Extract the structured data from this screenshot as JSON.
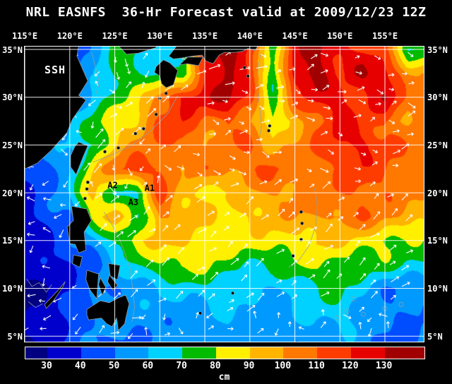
{
  "title": "NRL EASNFS  36-Hr Forecast valid at 2009/12/23 12Z",
  "map": {
    "field_label": "SSH",
    "lon_ticks": [
      "115°E",
      "120°E",
      "125°E",
      "130°E",
      "135°E",
      "140°E",
      "145°E",
      "150°E",
      "155°E"
    ],
    "lat_ticks": [
      "35°N",
      "30°N",
      "25°N",
      "20°N",
      "15°N",
      "10°N",
      "5°N"
    ],
    "annotations": [
      {
        "label": "A2",
        "lon": 124.2,
        "lat": 20.5
      },
      {
        "label": "A1",
        "lon": 128.3,
        "lat": 20.2
      },
      {
        "label": "A3",
        "lon": 126.5,
        "lat": 18.7
      }
    ]
  },
  "colorbar": {
    "units": "cm",
    "ticks": [
      "30",
      "40",
      "50",
      "60",
      "70",
      "80",
      "90",
      "100",
      "110",
      "120",
      "130"
    ],
    "thresholds": [
      30,
      40,
      50,
      60,
      70,
      80,
      90,
      100,
      110,
      120,
      130
    ],
    "colors": [
      "#000080",
      "#0000cc",
      "#004cff",
      "#009aff",
      "#00d2ff",
      "#00bb00",
      "#fff000",
      "#ffb400",
      "#ff7800",
      "#ff3c00",
      "#e60000",
      "#a00000"
    ]
  },
  "chart_data": {
    "type": "heatmap",
    "title": "NRL EASNFS 36-Hr Forecast valid at 2009/12/23 12Z",
    "variable": "Sea Surface Height (SSH)",
    "units": "cm",
    "lon_range": [
      115,
      157.5
    ],
    "lat_range": [
      5,
      35
    ],
    "colorbar_ticks": [
      30,
      40,
      50,
      60,
      70,
      80,
      90,
      100,
      110,
      120,
      130
    ],
    "lon": [
      115,
      117.5,
      120,
      122.5,
      125,
      127.5,
      130,
      132.5,
      135,
      137.5,
      140,
      142.5,
      145,
      147.5,
      150,
      152.5,
      155,
      157.5
    ],
    "lat": [
      35,
      32.5,
      30,
      27.5,
      25,
      22.5,
      20,
      17.5,
      15,
      12.5,
      10,
      7.5,
      5
    ],
    "values": [
      [
        45,
        45,
        40,
        55,
        72,
        72,
        66,
        68,
        115,
        135,
        122,
        72,
        126,
        136,
        124,
        118,
        108,
        70
      ],
      [
        45,
        46,
        44,
        56,
        76,
        76,
        66,
        70,
        118,
        136,
        114,
        72,
        132,
        136,
        114,
        130,
        124,
        100
      ],
      [
        46,
        48,
        52,
        66,
        76,
        82,
        106,
        120,
        126,
        131,
        120,
        78,
        112,
        124,
        122,
        114,
        131,
        106
      ],
      [
        48,
        52,
        62,
        76,
        86,
        92,
        112,
        116,
        106,
        114,
        104,
        76,
        96,
        106,
        126,
        114,
        112,
        104
      ],
      [
        50,
        55,
        62,
        70,
        90,
        100,
        106,
        112,
        100,
        106,
        112,
        96,
        100,
        110,
        120,
        126,
        114,
        108
      ],
      [
        44,
        50,
        60,
        86,
        106,
        116,
        114,
        96,
        112,
        104,
        106,
        110,
        100,
        108,
        112,
        118,
        112,
        104
      ],
      [
        38,
        46,
        56,
        96,
        66,
        70,
        118,
        96,
        88,
        86,
        95,
        100,
        105,
        108,
        110,
        112,
        108,
        100
      ],
      [
        35,
        42,
        50,
        80,
        100,
        70,
        105,
        95,
        88,
        85,
        90,
        95,
        100,
        102,
        105,
        108,
        100,
        95
      ],
      [
        32,
        38,
        45,
        55,
        76,
        88,
        92,
        90,
        85,
        82,
        85,
        88,
        90,
        92,
        90,
        85,
        80,
        78
      ],
      [
        30,
        35,
        42,
        50,
        60,
        70,
        78,
        82,
        80,
        75,
        72,
        75,
        78,
        80,
        75,
        72,
        75,
        72
      ],
      [
        28,
        33,
        42,
        48,
        52,
        55,
        58,
        62,
        68,
        66,
        62,
        58,
        62,
        68,
        70,
        62,
        55,
        52
      ],
      [
        30,
        36,
        42,
        55,
        58,
        52,
        55,
        58,
        60,
        62,
        58,
        54,
        56,
        62,
        66,
        60,
        52,
        50
      ],
      [
        32,
        38,
        44,
        46,
        48,
        50,
        52,
        54,
        56,
        58,
        54,
        52,
        54,
        58,
        60,
        56,
        50,
        48
      ]
    ],
    "eddy_annotations": [
      "A1",
      "A2",
      "A3"
    ],
    "legend_position": "bottom"
  }
}
